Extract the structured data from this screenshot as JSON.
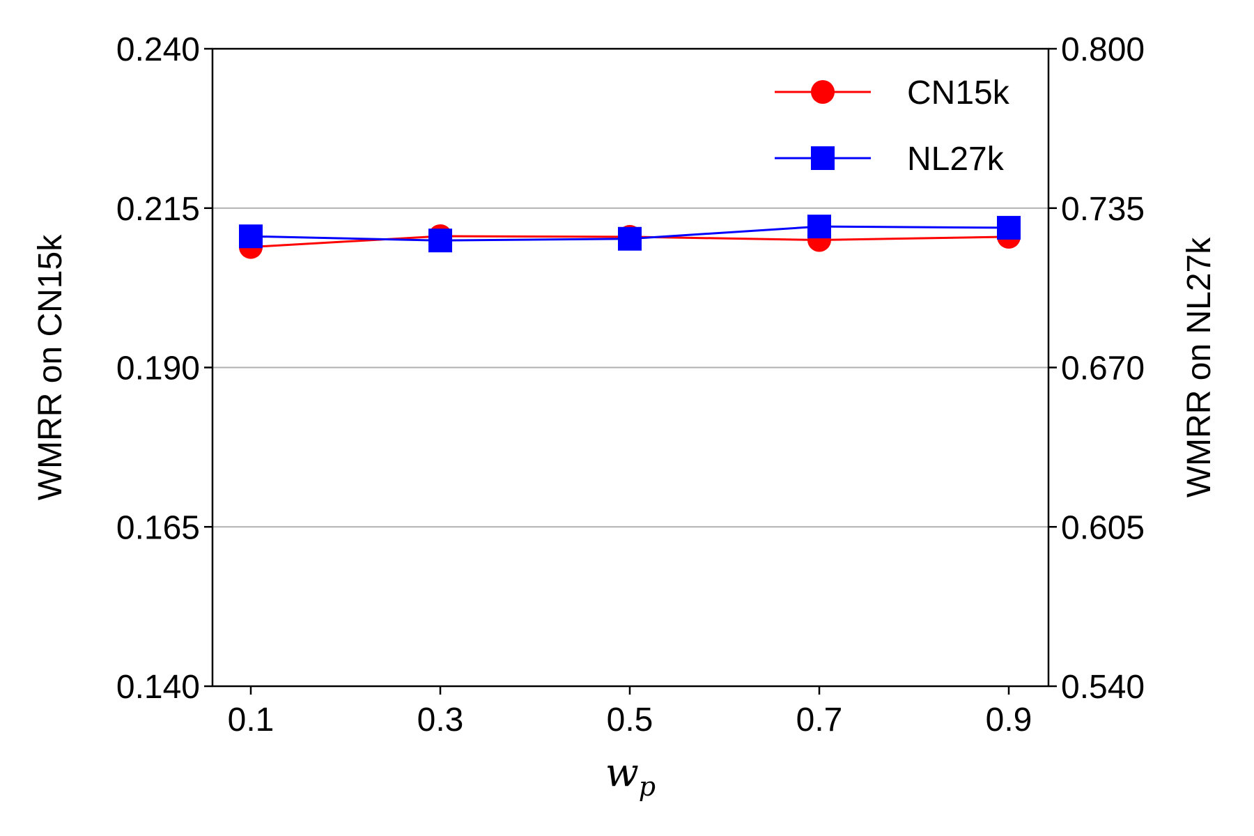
{
  "chart_data": {
    "type": "line",
    "x": [
      0.1,
      0.3,
      0.5,
      0.7,
      0.9
    ],
    "x_tick_labels": [
      "0.1",
      "0.3",
      "0.5",
      "0.7",
      "0.9"
    ],
    "xlabel": {
      "main": "w",
      "sub": "p"
    },
    "ylabel_left": "WMRR on CN15k",
    "ylabel_right": "WMRR on NL27k",
    "ylim_left": [
      0.14,
      0.24
    ],
    "ylim_right": [
      0.54,
      0.8
    ],
    "y_ticks_left": [
      "0.140",
      "0.165",
      "0.190",
      "0.215",
      "0.240"
    ],
    "y_ticks_right": [
      "0.540",
      "0.605",
      "0.670",
      "0.735",
      "0.800"
    ],
    "grid": "horizontal",
    "legend_position": "top-right",
    "series": [
      {
        "name": "CN15k",
        "axis": "left",
        "color": "#ff0000",
        "marker": "circle",
        "values": [
          0.2089,
          0.2106,
          0.2105,
          0.21,
          0.2105
        ]
      },
      {
        "name": "NL27k",
        "axis": "right",
        "color": "#0000ff",
        "marker": "square",
        "values": [
          0.7235,
          0.7218,
          0.7225,
          0.7275,
          0.727
        ]
      }
    ]
  }
}
